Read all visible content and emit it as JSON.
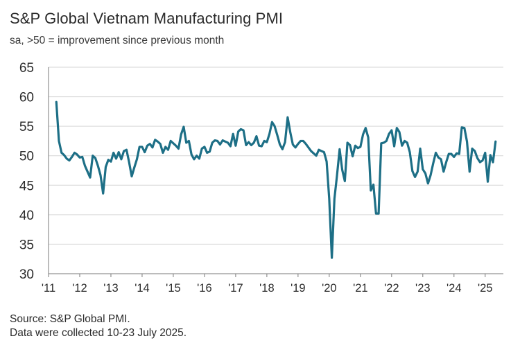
{
  "footer": {
    "source": "Source: S&P Global PMI.",
    "note": "Data were collected 10-23 July 2025."
  },
  "colors": {
    "line": "#1d6f86",
    "grid": "#d6d6d6",
    "axis": "#7a7a7a"
  },
  "chart_data": {
    "type": "line",
    "title": "S&P Global Vietnam Manufacturing PMI",
    "subtitle": "sa, >50 = improvement since previous month",
    "xlabel": "",
    "ylabel": "",
    "ylim": [
      30,
      65
    ],
    "yticks": [
      30,
      35,
      40,
      45,
      50,
      55,
      60,
      65
    ],
    "xlim": [
      2011.0,
      2025.583
    ],
    "xticks": [
      {
        "value": 2011,
        "label": "'11"
      },
      {
        "value": 2012,
        "label": "'12"
      },
      {
        "value": 2013,
        "label": "'13"
      },
      {
        "value": 2014,
        "label": "'14"
      },
      {
        "value": 2015,
        "label": "'15"
      },
      {
        "value": 2016,
        "label": "'16"
      },
      {
        "value": 2017,
        "label": "'17"
      },
      {
        "value": 2018,
        "label": "'18"
      },
      {
        "value": 2019,
        "label": "'19"
      },
      {
        "value": 2020,
        "label": "'20"
      },
      {
        "value": 2021,
        "label": "'21"
      },
      {
        "value": 2022,
        "label": "'22"
      },
      {
        "value": 2023,
        "label": "'23"
      },
      {
        "value": 2024,
        "label": "'24"
      },
      {
        "value": 2025,
        "label": "'25"
      }
    ],
    "grid": true,
    "series": [
      {
        "name": "Vietnam Manufacturing PMI",
        "start": "2011-04",
        "values": [
          59.1,
          52.5,
          50.5,
          50.1,
          49.5,
          49.2,
          49.8,
          50.5,
          50.2,
          49.7,
          49.8,
          48.3,
          47.3,
          46.3,
          50.0,
          49.6,
          48.3,
          46.7,
          43.6,
          48.1,
          49.3,
          49.0,
          50.5,
          49.5,
          50.6,
          49.4,
          50.8,
          51.0,
          48.9,
          46.5,
          48.0,
          49.4,
          51.5,
          51.5,
          50.6,
          51.7,
          52.0,
          51.4,
          52.7,
          52.4,
          52.0,
          50.5,
          51.5,
          51.0,
          52.5,
          52.1,
          51.7,
          51.2,
          53.6,
          54.9,
          52.2,
          52.5,
          50.2,
          49.4,
          50.0,
          49.5,
          51.2,
          51.5,
          50.5,
          50.7,
          52.2,
          52.6,
          52.5,
          51.9,
          52.6,
          52.4,
          52.2,
          51.6,
          53.7,
          51.7,
          54.1,
          54.5,
          54.3,
          51.8,
          52.3,
          51.8,
          52.2,
          53.3,
          51.7,
          51.6,
          52.5,
          52.3,
          53.7,
          55.7,
          55.0,
          53.5,
          51.9,
          51.1,
          52.3,
          56.5,
          54.0,
          51.9,
          51.4,
          52.0,
          52.5,
          52.5,
          52.0,
          51.4,
          50.8,
          50.4,
          50.0,
          51.0,
          50.8,
          50.6,
          49.0,
          42.7,
          32.7,
          42.7,
          46.7,
          51.1,
          47.6,
          45.7,
          52.2,
          51.8,
          49.9,
          51.7,
          51.3,
          51.5,
          53.6,
          54.7,
          53.1,
          44.1,
          45.1,
          40.2,
          40.2,
          52.1,
          52.2,
          52.5,
          53.7,
          54.3,
          51.6,
          54.7,
          54.0,
          51.7,
          52.5,
          52.2,
          50.6,
          47.4,
          46.4,
          47.3,
          51.2,
          47.7,
          47.0,
          45.3,
          46.7,
          48.7,
          50.5,
          49.7,
          49.4,
          47.3,
          48.9,
          50.3,
          50.3,
          49.8,
          50.4,
          50.3,
          54.8,
          54.7,
          52.4,
          47.3,
          51.2,
          50.8,
          49.6,
          48.9,
          49.2,
          50.5,
          45.6,
          50.1,
          48.9,
          52.4
        ]
      }
    ]
  }
}
